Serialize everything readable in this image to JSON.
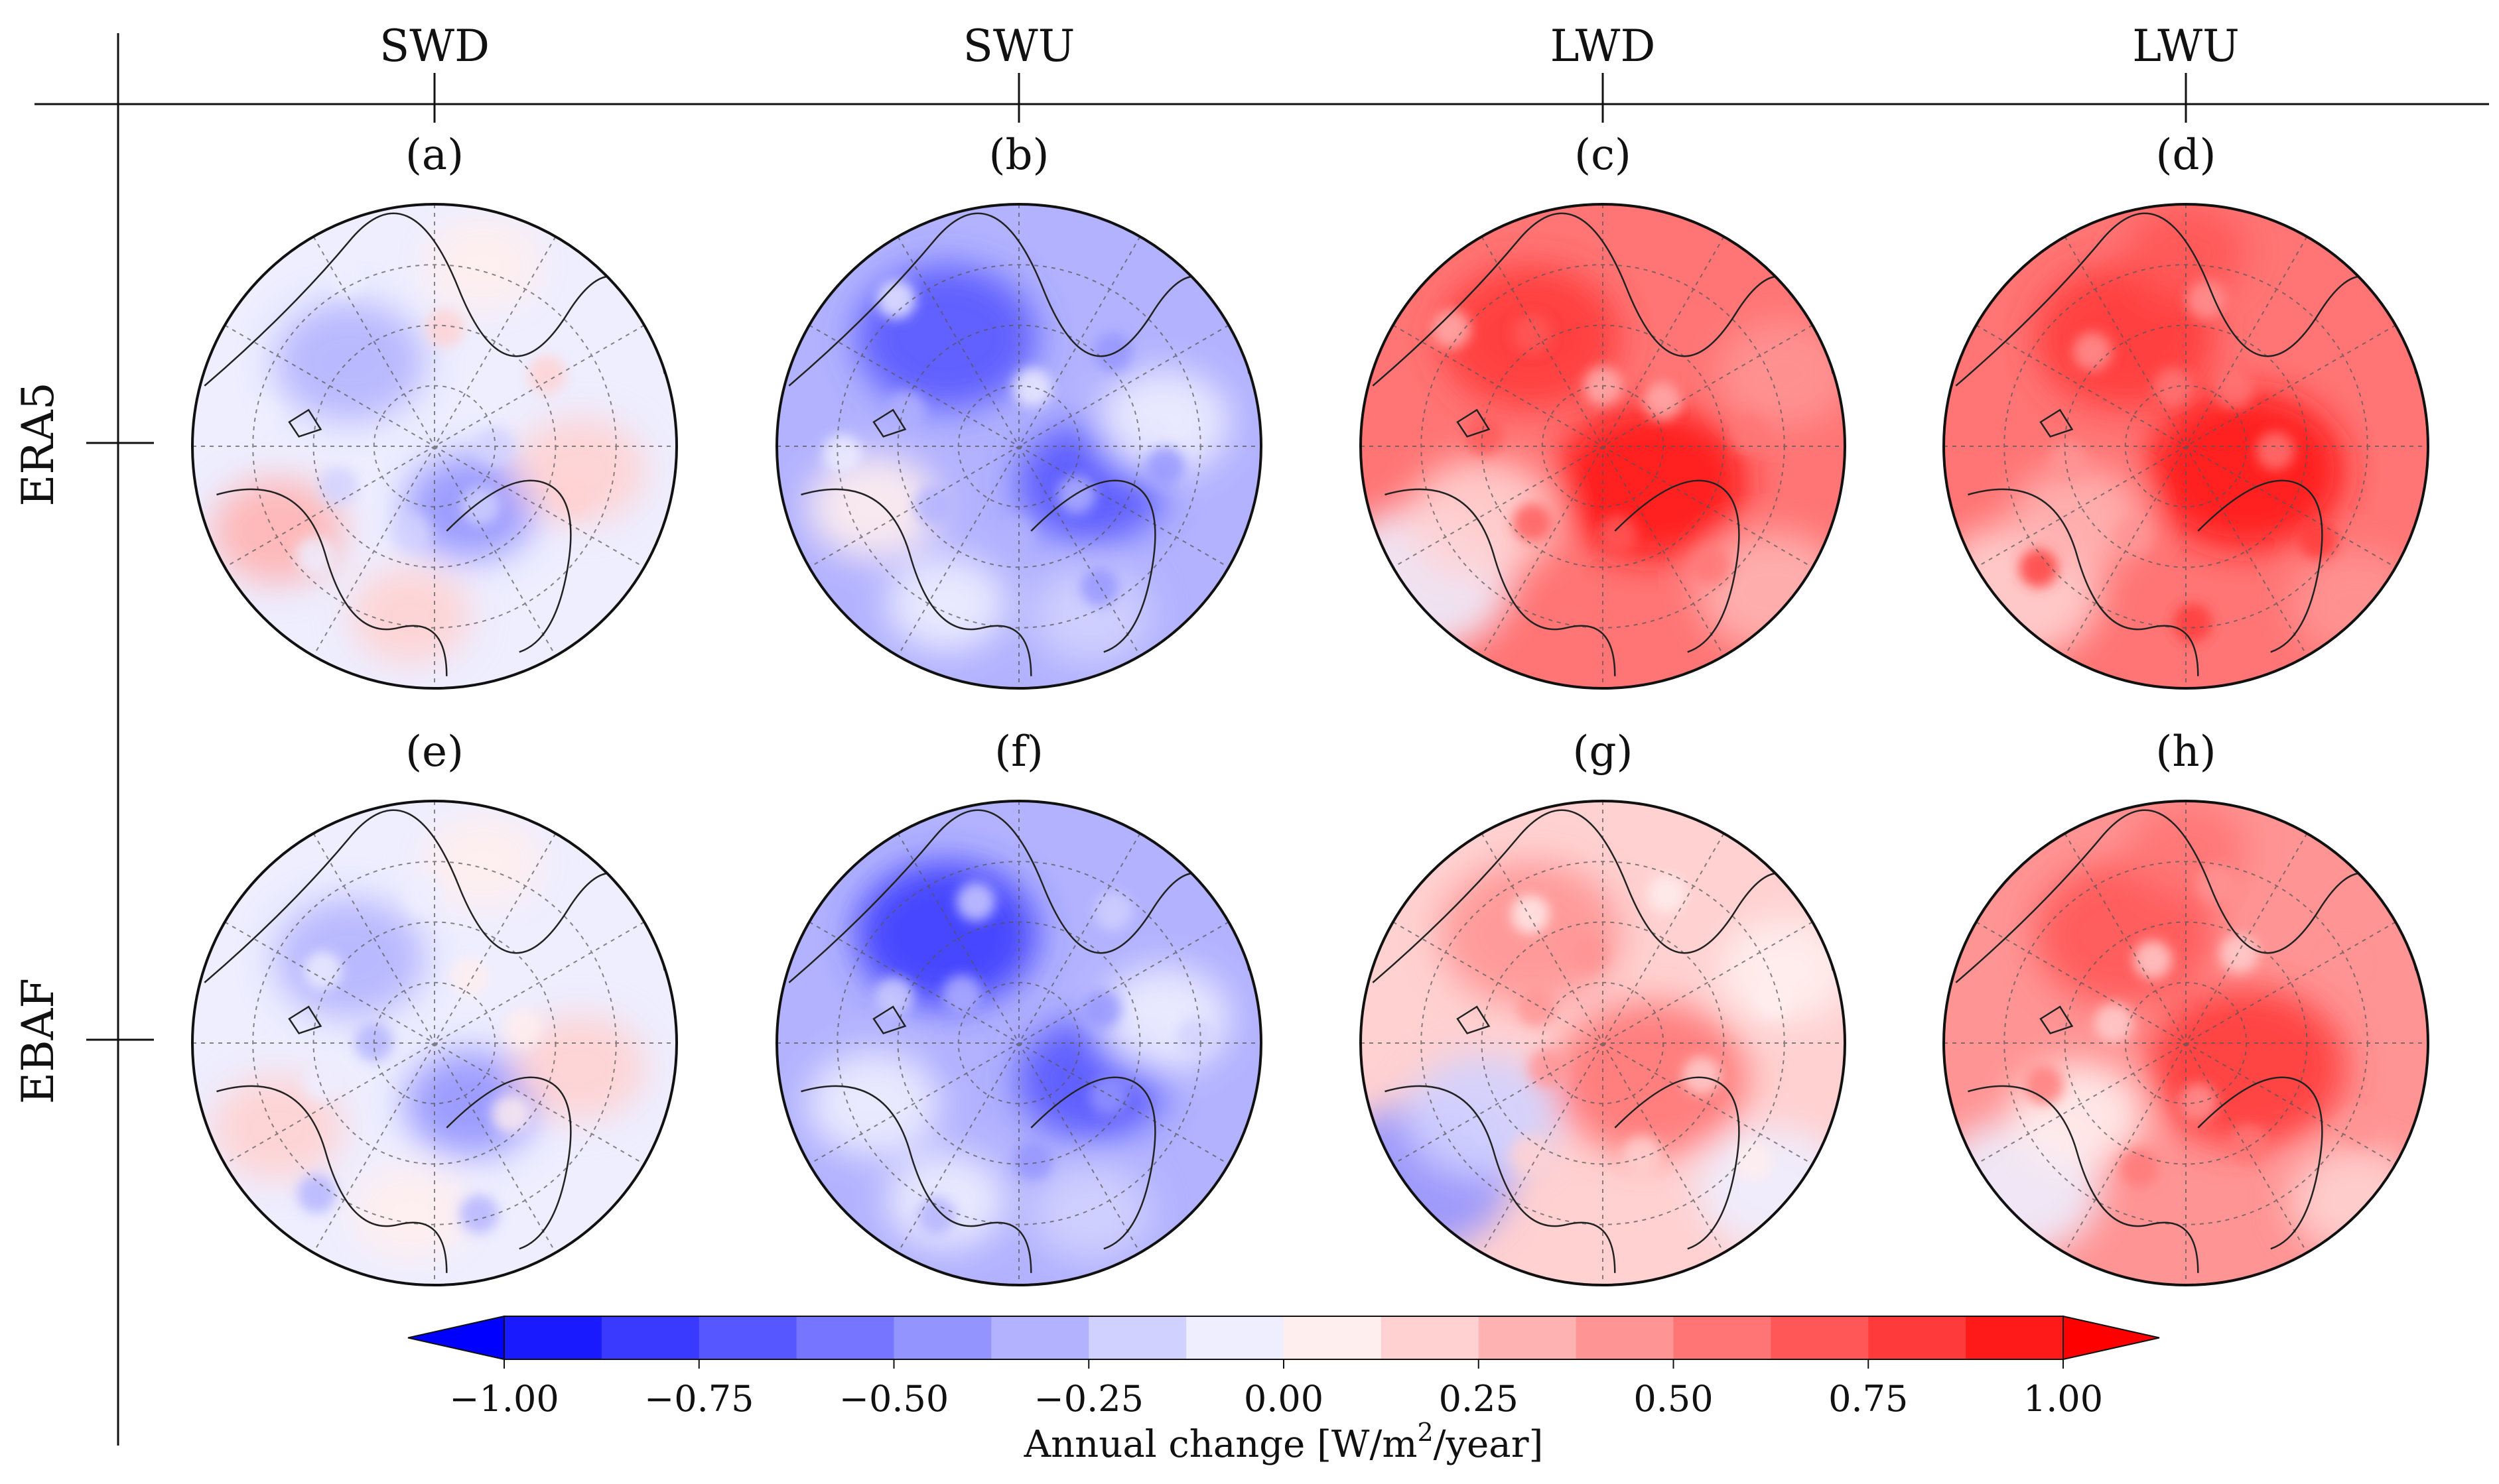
{
  "chart_data": {
    "type": "heatmap",
    "title": "",
    "projection": "north polar stereographic",
    "columns": [
      "SWD",
      "SWU",
      "LWD",
      "LWU"
    ],
    "rows": [
      "ERA5",
      "EBAF"
    ],
    "panels": [
      {
        "label": "(a)",
        "row": "ERA5",
        "column": "SWD",
        "mean_change": -0.05
      },
      {
        "label": "(b)",
        "row": "ERA5",
        "column": "SWU",
        "mean_change": -0.28
      },
      {
        "label": "(c)",
        "row": "ERA5",
        "column": "LWD",
        "mean_change": 0.55
      },
      {
        "label": "(d)",
        "row": "ERA5",
        "column": "LWU",
        "mean_change": 0.6
      },
      {
        "label": "(e)",
        "row": "EBAF",
        "column": "SWD",
        "mean_change": -0.1
      },
      {
        "label": "(f)",
        "row": "EBAF",
        "column": "SWU",
        "mean_change": -0.32
      },
      {
        "label": "(g)",
        "row": "EBAF",
        "column": "LWD",
        "mean_change": 0.2
      },
      {
        "label": "(h)",
        "row": "EBAF",
        "column": "LWU",
        "mean_change": 0.42
      }
    ],
    "colorbar": {
      "label_prefix": "Annual change [W/m",
      "label_sup": "2",
      "label_suffix": "/year]",
      "range": [
        -1.0,
        1.0
      ],
      "ticks": [
        -1.0,
        -0.75,
        -0.5,
        -0.25,
        0.0,
        0.25,
        0.5,
        0.75,
        1.0
      ],
      "tick_labels": [
        "−1.00",
        "−0.75",
        "−0.50",
        "−0.25",
        "0.00",
        "0.25",
        "0.50",
        "0.75",
        "1.00"
      ],
      "bins": [
        -1.0,
        -0.875,
        -0.75,
        -0.625,
        -0.5,
        -0.375,
        -0.25,
        -0.125,
        0.0,
        0.125,
        0.25,
        0.375,
        0.5,
        0.625,
        0.75,
        0.875,
        1.0
      ],
      "colors": [
        "#1a1aff",
        "#3a3aff",
        "#5757ff",
        "#7575ff",
        "#9494ff",
        "#b2b2ff",
        "#d1d1ff",
        "#eeeeff",
        "#ffeeee",
        "#ffd1d1",
        "#ffb2b2",
        "#ff9494",
        "#ff7575",
        "#ff5757",
        "#ff3a3a",
        "#ff1a1a"
      ],
      "under_color": "#0000ff",
      "over_color": "#ff0000",
      "extend": "both"
    }
  }
}
